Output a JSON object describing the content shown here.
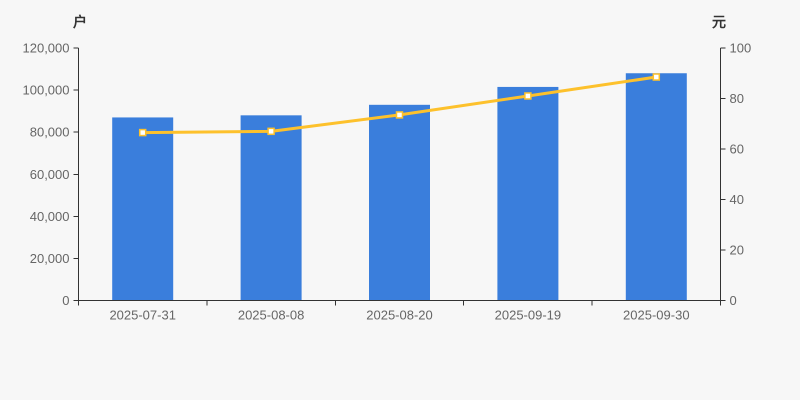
{
  "page": {
    "background_color": "#f7f7f7"
  },
  "chart_data": {
    "type": "bar+line",
    "title": "",
    "categories": [
      "2025-07-31",
      "2025-08-08",
      "2025-08-20",
      "2025-09-19",
      "2025-09-30"
    ],
    "series": [
      {
        "name": "户",
        "type": "bar",
        "axis": "left",
        "color": "#3a7edc",
        "values": [
          87000,
          88000,
          93000,
          101500,
          108000
        ]
      },
      {
        "name": "元",
        "type": "line",
        "axis": "right",
        "color": "#fdc12c",
        "marker_shape": "square",
        "marker_fill": "#ffffff",
        "values": [
          66.5,
          67,
          73.5,
          81,
          88.5
        ]
      }
    ],
    "left_axis": {
      "label": "户",
      "min": 0,
      "max": 120000,
      "tick_labels": [
        "0",
        "20,000",
        "40,000",
        "60,000",
        "80,000",
        "100,000",
        "120,000"
      ]
    },
    "right_axis": {
      "label": "元",
      "min": 0,
      "max": 100,
      "tick_labels": [
        "0",
        "20",
        "40",
        "60",
        "80",
        "100"
      ]
    },
    "axis_color": "#333333",
    "tick_label_color": "#666666",
    "grid": false,
    "legend_position": "none"
  }
}
